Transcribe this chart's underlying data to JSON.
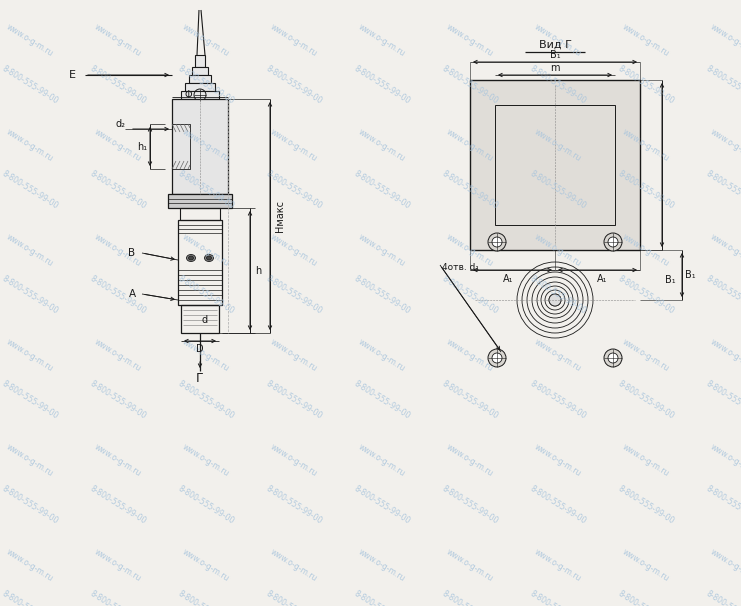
{
  "bg_color": "#f2f0ec",
  "line_color": "#1a1a1a",
  "watermark_color": "#a8c4dc",
  "fig_width": 7.41,
  "fig_height": 6.06,
  "dpi": 100,
  "labels": {
    "E": "E",
    "d2": "d₂",
    "h1": "h₁",
    "Hmax": "Hмакс",
    "h": "h",
    "B": "B",
    "A": "A",
    "d": "d",
    "D": "D",
    "G_bottom": "Г",
    "Phi": "Φ",
    "B1_top": "B₁",
    "m": "m",
    "A1_left": "A₁",
    "A1_right": "A₁",
    "B1_side_full": "B₁",
    "B1_side_half": "B₁",
    "vid_G": "Вид Г",
    "4otv_d1": "4отв. d₁"
  }
}
